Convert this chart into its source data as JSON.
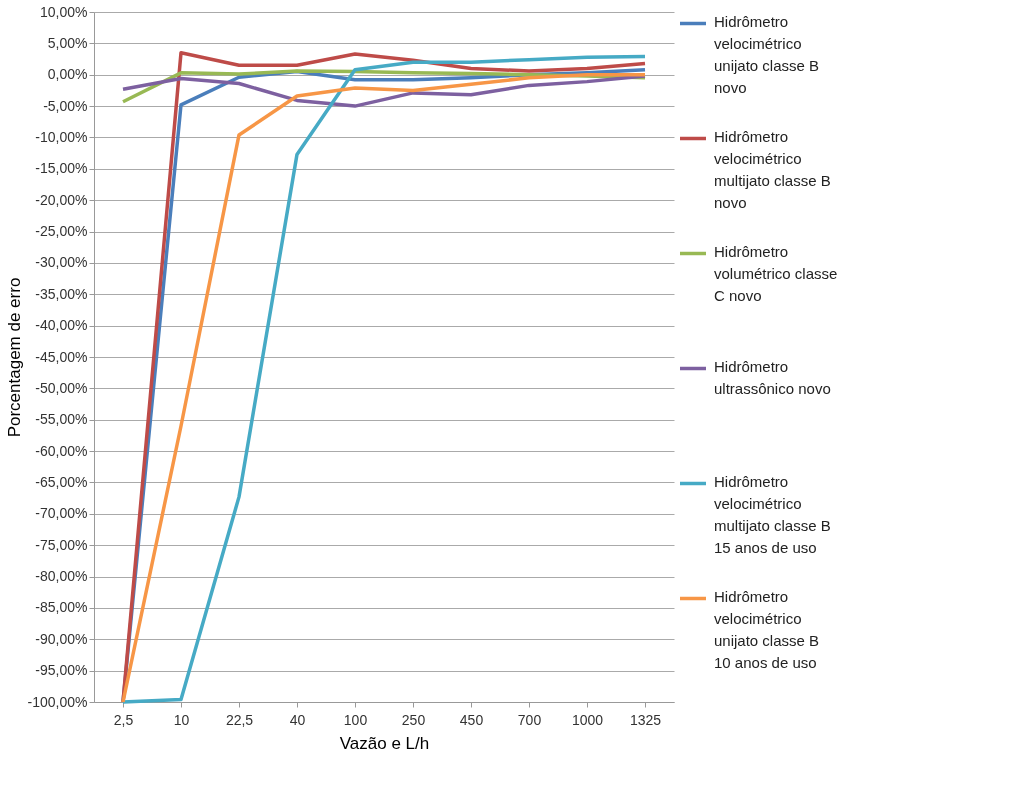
{
  "chart_data": {
    "type": "line",
    "xlabel": "Vazão e L/h",
    "ylabel": "Porcentagem de erro",
    "categories": [
      "2,5",
      "10",
      "22,5",
      "40",
      "100",
      "250",
      "450",
      "700",
      "1000",
      "1325"
    ],
    "ylim": [
      -100,
      10
    ],
    "yticks": [
      {
        "value": 10,
        "label": "10,00%"
      },
      {
        "value": 5,
        "label": "5,00%"
      },
      {
        "value": 0,
        "label": "0,00%"
      },
      {
        "value": -5,
        "label": "-5,00%"
      },
      {
        "value": -10,
        "label": "-10,00%"
      },
      {
        "value": -15,
        "label": "-15,00%"
      },
      {
        "value": -20,
        "label": "-20,00%"
      },
      {
        "value": -25,
        "label": "-25,00%"
      },
      {
        "value": -30,
        "label": "-30,00%"
      },
      {
        "value": -35,
        "label": "-35,00%"
      },
      {
        "value": -40,
        "label": "-40,00%"
      },
      {
        "value": -45,
        "label": "-45,00%"
      },
      {
        "value": -50,
        "label": "-50,00%"
      },
      {
        "value": -55,
        "label": "-55,00%"
      },
      {
        "value": -60,
        "label": "-60,00%"
      },
      {
        "value": -65,
        "label": "-65,00%"
      },
      {
        "value": -70,
        "label": "-70,00%"
      },
      {
        "value": -75,
        "label": "-75,00%"
      },
      {
        "value": -80,
        "label": "-80,00%"
      },
      {
        "value": -85,
        "label": "-85,00%"
      },
      {
        "value": -90,
        "label": "-90,00%"
      },
      {
        "value": -95,
        "label": "-95,00%"
      },
      {
        "value": -100,
        "label": "-100,00%"
      }
    ],
    "grid": "y",
    "legend": "right",
    "marker": "none",
    "line_style": "solid",
    "series": [
      {
        "name": "Hidrômetro velocimétrico unijato classe B novo",
        "color": "#4a7ebb",
        "values": [
          -100,
          -4.8,
          -0.4,
          0.5,
          -0.8,
          -0.8,
          -0.5,
          0,
          0.3,
          0.8
        ]
      },
      {
        "name": "Hidrômetro velocimétrico multijato classe B novo",
        "color": "#be4b48",
        "values": [
          -100,
          3.5,
          1.5,
          1.5,
          3.3,
          2.3,
          1.0,
          0.6,
          1.0,
          1.8
        ]
      },
      {
        "name": "Hidrômetro volumétrico classe C novo",
        "color": "#98b954",
        "values": [
          -4.3,
          0.3,
          0.1,
          0.6,
          0.5,
          0.3,
          0.2,
          0,
          -0.2,
          -0.5
        ]
      },
      {
        "name": "Hidrômetro ultrassônico novo",
        "color": "#7d60a0",
        "values": [
          -2.3,
          -0.6,
          -1.4,
          -4.1,
          -5.0,
          -2.9,
          -3.2,
          -1.7,
          -1.1,
          -0.2
        ]
      },
      {
        "name": "Hidrômetro velocimétrico multijato classe B 15 anos de uso",
        "color": "#46aac5",
        "values": [
          -100,
          -99.6,
          -67.3,
          -12.7,
          0.8,
          2.0,
          2.0,
          2.4,
          2.8,
          2.9
        ]
      },
      {
        "name": "Hidrômetro velocimétrico unijato classe B 10 anos de uso",
        "color": "#f79646",
        "values": [
          -100,
          -56,
          -9.6,
          -3.4,
          -2.1,
          -2.5,
          -1.5,
          -0.5,
          0,
          0
        ]
      }
    ]
  }
}
